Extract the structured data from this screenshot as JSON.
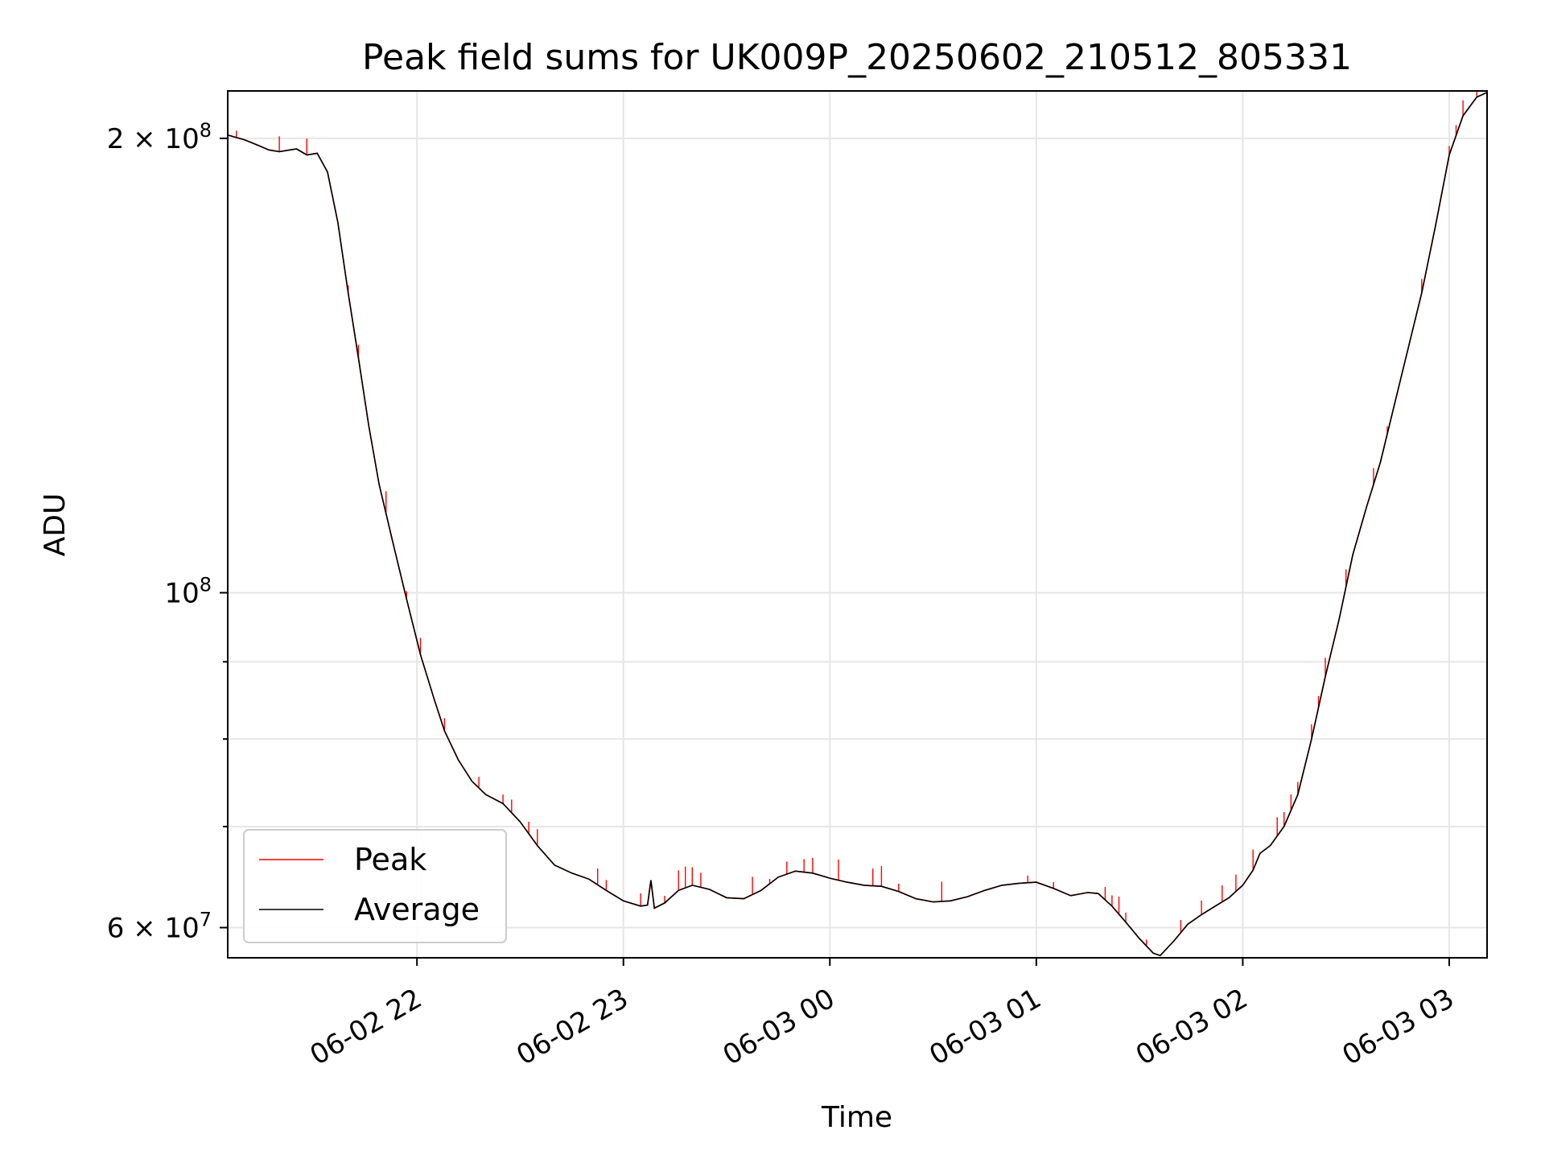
{
  "chart_data": {
    "type": "line",
    "title": "Peak field sums for UK009P_20250602_210512_805331",
    "xlabel": "Time",
    "ylabel": "ADU",
    "x_unit": "datetime",
    "xlim": [
      "2025-06-02 21:05",
      "2025-06-03 03:11"
    ],
    "x_ticks": [
      {
        "t": "2025-06-02 22:00",
        "label": "06-02 22"
      },
      {
        "t": "2025-06-02 23:00",
        "label": "06-02 23"
      },
      {
        "t": "2025-06-03 00:00",
        "label": "06-03 00"
      },
      {
        "t": "2025-06-03 01:00",
        "label": "06-03 01"
      },
      {
        "t": "2025-06-03 02:00",
        "label": "06-03 02"
      },
      {
        "t": "2025-06-03 03:00",
        "label": "06-03 03"
      }
    ],
    "y_scale": "log",
    "ylim": [
      57300000,
      215000000
    ],
    "y_major_ticks": [
      {
        "v": 60000000,
        "base": "6 × 10",
        "exp": "7"
      },
      {
        "v": 100000000,
        "base": "10",
        "exp": "8"
      },
      {
        "v": 200000000,
        "base": "2 × 10",
        "exp": "8"
      }
    ],
    "y_minor_ticks": [
      70000000,
      80000000,
      90000000
    ],
    "grid": true,
    "legend_position": "lower-left",
    "series": [
      {
        "name": "Peak",
        "color": "#ff0000",
        "spiky": true,
        "points": [
          [
            "2025-06-02 21:05",
            201000000
          ],
          [
            "2025-06-02 21:10",
            199500000
          ],
          [
            "2025-06-02 21:14",
            197800000
          ],
          [
            "2025-06-02 21:17",
            196500000
          ],
          [
            "2025-06-02 21:20",
            196000000
          ],
          [
            "2025-06-02 21:25",
            196800000
          ],
          [
            "2025-06-02 21:28",
            195000000
          ],
          [
            "2025-06-02 21:31",
            195500000
          ],
          [
            "2025-06-02 21:34",
            190000000
          ],
          [
            "2025-06-02 21:37",
            176000000
          ],
          [
            "2025-06-02 21:40",
            158000000
          ],
          [
            "2025-06-02 21:43",
            143000000
          ],
          [
            "2025-06-02 21:46",
            129000000
          ],
          [
            "2025-06-02 21:49",
            118000000
          ],
          [
            "2025-06-02 21:53",
            108000000
          ],
          [
            "2025-06-02 21:57",
            99000000
          ],
          [
            "2025-06-02 22:01",
            91000000
          ],
          [
            "2025-06-02 22:05",
            85000000
          ],
          [
            "2025-06-02 22:08",
            81000000
          ],
          [
            "2025-06-02 22:12",
            77500000
          ],
          [
            "2025-06-02 22:16",
            75000000
          ],
          [
            "2025-06-02 22:20",
            73500000
          ],
          [
            "2025-06-02 22:25",
            72500000
          ],
          [
            "2025-06-02 22:30",
            70500000
          ],
          [
            "2025-06-02 22:35",
            68000000
          ],
          [
            "2025-06-02 22:40",
            66000000
          ],
          [
            "2025-06-02 22:45",
            65200000
          ],
          [
            "2025-06-02 22:50",
            64600000
          ],
          [
            "2025-06-02 22:55",
            63500000
          ],
          [
            "2025-06-02 23:00",
            62500000
          ],
          [
            "2025-06-02 23:05",
            62000000
          ],
          [
            "2025-06-02 23:07",
            62100000
          ],
          [
            "2025-06-02 23:08",
            64500000
          ],
          [
            "2025-06-02 23:09",
            61800000
          ],
          [
            "2025-06-02 23:12",
            62300000
          ],
          [
            "2025-06-02 23:16",
            63500000
          ],
          [
            "2025-06-02 23:20",
            64000000
          ],
          [
            "2025-06-02 23:25",
            63600000
          ],
          [
            "2025-06-02 23:30",
            62800000
          ],
          [
            "2025-06-02 23:35",
            62700000
          ],
          [
            "2025-06-02 23:40",
            63500000
          ],
          [
            "2025-06-02 23:45",
            64800000
          ],
          [
            "2025-06-02 23:50",
            65400000
          ],
          [
            "2025-06-02 23:55",
            65200000
          ],
          [
            "2025-06-03 00:00",
            64700000
          ],
          [
            "2025-06-03 00:05",
            64300000
          ],
          [
            "2025-06-03 00:10",
            64000000
          ],
          [
            "2025-06-03 00:15",
            63900000
          ],
          [
            "2025-06-03 00:20",
            63400000
          ],
          [
            "2025-06-03 00:25",
            62700000
          ],
          [
            "2025-06-03 00:30",
            62400000
          ],
          [
            "2025-06-03 00:35",
            62500000
          ],
          [
            "2025-06-03 00:40",
            62900000
          ],
          [
            "2025-06-03 00:45",
            63500000
          ],
          [
            "2025-06-03 00:50",
            64000000
          ],
          [
            "2025-06-03 00:55",
            64200000
          ],
          [
            "2025-06-03 01:00",
            64300000
          ],
          [
            "2025-06-03 01:05",
            63700000
          ],
          [
            "2025-06-03 01:10",
            63000000
          ],
          [
            "2025-06-03 01:15",
            63300000
          ],
          [
            "2025-06-03 01:18",
            63200000
          ],
          [
            "2025-06-03 01:22",
            62000000
          ],
          [
            "2025-06-03 01:26",
            60500000
          ],
          [
            "2025-06-03 01:30",
            59000000
          ],
          [
            "2025-06-03 01:34",
            57700000
          ],
          [
            "2025-06-03 01:36",
            57500000
          ],
          [
            "2025-06-03 01:40",
            58800000
          ],
          [
            "2025-06-03 01:44",
            60300000
          ],
          [
            "2025-06-03 01:48",
            61200000
          ],
          [
            "2025-06-03 01:52",
            62000000
          ],
          [
            "2025-06-03 01:56",
            62800000
          ],
          [
            "2025-06-03 02:00",
            64000000
          ],
          [
            "2025-06-03 02:03",
            65500000
          ],
          [
            "2025-06-03 02:05",
            67200000
          ],
          [
            "2025-06-03 02:08",
            68000000
          ],
          [
            "2025-06-03 02:12",
            70000000
          ],
          [
            "2025-06-03 02:16",
            73500000
          ],
          [
            "2025-06-03 02:20",
            80000000
          ],
          [
            "2025-06-03 02:24",
            88000000
          ],
          [
            "2025-06-03 02:28",
            96000000
          ],
          [
            "2025-06-03 02:32",
            106000000
          ],
          [
            "2025-06-03 02:36",
            114000000
          ],
          [
            "2025-06-03 02:40",
            122000000
          ],
          [
            "2025-06-03 02:44",
            133000000
          ],
          [
            "2025-06-03 02:48",
            145000000
          ],
          [
            "2025-06-03 02:52",
            158000000
          ],
          [
            "2025-06-03 02:56",
            175000000
          ],
          [
            "2025-06-03 03:00",
            195000000
          ],
          [
            "2025-06-03 03:04",
            207000000
          ],
          [
            "2025-06-03 03:08",
            213000000
          ],
          [
            "2025-06-03 03:11",
            214500000
          ]
        ]
      },
      {
        "name": "Average",
        "color": "#000000",
        "points": [
          [
            "2025-06-02 21:05",
            201000000
          ],
          [
            "2025-06-02 21:10",
            199500000
          ],
          [
            "2025-06-02 21:14",
            197800000
          ],
          [
            "2025-06-02 21:17",
            196500000
          ],
          [
            "2025-06-02 21:20",
            196000000
          ],
          [
            "2025-06-02 21:25",
            196800000
          ],
          [
            "2025-06-02 21:28",
            195000000
          ],
          [
            "2025-06-02 21:31",
            195500000
          ],
          [
            "2025-06-02 21:34",
            190000000
          ],
          [
            "2025-06-02 21:37",
            176000000
          ],
          [
            "2025-06-02 21:40",
            158000000
          ],
          [
            "2025-06-02 21:43",
            143000000
          ],
          [
            "2025-06-02 21:46",
            129000000
          ],
          [
            "2025-06-02 21:49",
            118000000
          ],
          [
            "2025-06-02 21:53",
            108000000
          ],
          [
            "2025-06-02 21:57",
            99000000
          ],
          [
            "2025-06-02 22:01",
            91000000
          ],
          [
            "2025-06-02 22:05",
            85000000
          ],
          [
            "2025-06-02 22:08",
            81000000
          ],
          [
            "2025-06-02 22:12",
            77500000
          ],
          [
            "2025-06-02 22:16",
            75000000
          ],
          [
            "2025-06-02 22:20",
            73500000
          ],
          [
            "2025-06-02 22:25",
            72500000
          ],
          [
            "2025-06-02 22:30",
            70500000
          ],
          [
            "2025-06-02 22:35",
            68000000
          ],
          [
            "2025-06-02 22:40",
            66000000
          ],
          [
            "2025-06-02 22:45",
            65200000
          ],
          [
            "2025-06-02 22:50",
            64600000
          ],
          [
            "2025-06-02 22:55",
            63500000
          ],
          [
            "2025-06-02 23:00",
            62500000
          ],
          [
            "2025-06-02 23:05",
            62000000
          ],
          [
            "2025-06-02 23:07",
            62100000
          ],
          [
            "2025-06-02 23:08",
            64500000
          ],
          [
            "2025-06-02 23:09",
            61800000
          ],
          [
            "2025-06-02 23:12",
            62300000
          ],
          [
            "2025-06-02 23:16",
            63500000
          ],
          [
            "2025-06-02 23:20",
            64000000
          ],
          [
            "2025-06-02 23:25",
            63600000
          ],
          [
            "2025-06-02 23:30",
            62800000
          ],
          [
            "2025-06-02 23:35",
            62700000
          ],
          [
            "2025-06-02 23:40",
            63500000
          ],
          [
            "2025-06-02 23:45",
            64800000
          ],
          [
            "2025-06-02 23:50",
            65400000
          ],
          [
            "2025-06-02 23:55",
            65200000
          ],
          [
            "2025-06-03 00:00",
            64700000
          ],
          [
            "2025-06-03 00:05",
            64300000
          ],
          [
            "2025-06-03 00:10",
            64000000
          ],
          [
            "2025-06-03 00:15",
            63900000
          ],
          [
            "2025-06-03 00:20",
            63400000
          ],
          [
            "2025-06-03 00:25",
            62700000
          ],
          [
            "2025-06-03 00:30",
            62400000
          ],
          [
            "2025-06-03 00:35",
            62500000
          ],
          [
            "2025-06-03 00:40",
            62900000
          ],
          [
            "2025-06-03 00:45",
            63500000
          ],
          [
            "2025-06-03 00:50",
            64000000
          ],
          [
            "2025-06-03 00:55",
            64200000
          ],
          [
            "2025-06-03 01:00",
            64300000
          ],
          [
            "2025-06-03 01:05",
            63700000
          ],
          [
            "2025-06-03 01:10",
            63000000
          ],
          [
            "2025-06-03 01:15",
            63300000
          ],
          [
            "2025-06-03 01:18",
            63200000
          ],
          [
            "2025-06-03 01:22",
            62000000
          ],
          [
            "2025-06-03 01:26",
            60500000
          ],
          [
            "2025-06-03 01:30",
            59000000
          ],
          [
            "2025-06-03 01:34",
            57700000
          ],
          [
            "2025-06-03 01:36",
            57500000
          ],
          [
            "2025-06-03 01:40",
            58800000
          ],
          [
            "2025-06-03 01:44",
            60300000
          ],
          [
            "2025-06-03 01:48",
            61200000
          ],
          [
            "2025-06-03 01:52",
            62000000
          ],
          [
            "2025-06-03 01:56",
            62800000
          ],
          [
            "2025-06-03 02:00",
            64000000
          ],
          [
            "2025-06-03 02:03",
            65500000
          ],
          [
            "2025-06-03 02:05",
            67200000
          ],
          [
            "2025-06-03 02:08",
            68000000
          ],
          [
            "2025-06-03 02:12",
            70000000
          ],
          [
            "2025-06-03 02:16",
            73500000
          ],
          [
            "2025-06-03 02:20",
            80000000
          ],
          [
            "2025-06-03 02:24",
            88000000
          ],
          [
            "2025-06-03 02:28",
            96000000
          ],
          [
            "2025-06-03 02:32",
            106000000
          ],
          [
            "2025-06-03 02:36",
            114000000
          ],
          [
            "2025-06-03 02:40",
            122000000
          ],
          [
            "2025-06-03 02:44",
            133000000
          ],
          [
            "2025-06-03 02:48",
            145000000
          ],
          [
            "2025-06-03 02:52",
            158000000
          ],
          [
            "2025-06-03 02:56",
            175000000
          ],
          [
            "2025-06-03 03:00",
            195000000
          ],
          [
            "2025-06-03 03:04",
            207000000
          ],
          [
            "2025-06-03 03:08",
            213000000
          ],
          [
            "2025-06-03 03:11",
            214500000
          ]
        ]
      }
    ]
  }
}
